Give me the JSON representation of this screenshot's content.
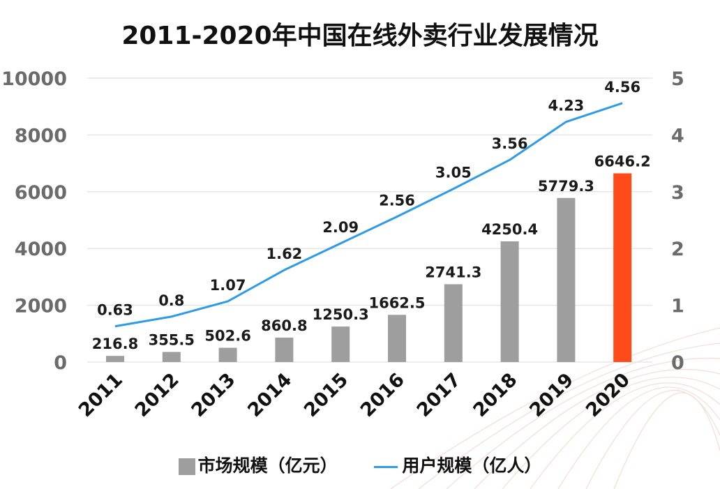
{
  "title": "2011-2020年中国在线外卖行业发展情况",
  "legend": {
    "bar_label": "市场规模（亿元）",
    "line_label": "用户规模（亿人）"
  },
  "colors": {
    "bar": "#9e9e9e",
    "highlight_bar": "#ff4a1a",
    "line": "#2f9be6",
    "grid": "#e6e6e6"
  },
  "chart_data": {
    "type": "bar",
    "title": "2011-2020年中国在线外卖行业发展情况",
    "categories": [
      "2011",
      "2012",
      "2013",
      "2014",
      "2015",
      "2016",
      "2017",
      "2018",
      "2019",
      "2020"
    ],
    "series": [
      {
        "name": "市场规模（亿元）",
        "type": "bar",
        "axis": "left",
        "values": [
          216.8,
          355.5,
          502.6,
          860.8,
          1250.3,
          1662.5,
          2741.3,
          4250.4,
          5779.3,
          6646.2
        ],
        "labels": [
          "216.8",
          "355.5",
          "502.6",
          "860.8",
          "1250.3",
          "1662.5",
          "2741.3",
          "4250.4",
          "5779.3",
          "6646.2"
        ],
        "highlight_index": 9
      },
      {
        "name": "用户规模（亿人）",
        "type": "line",
        "axis": "right",
        "values": [
          0.63,
          0.8,
          1.07,
          1.62,
          2.09,
          2.56,
          3.05,
          3.56,
          4.23,
          4.56
        ],
        "labels": [
          "0.63",
          "0.8",
          "1.07",
          "1.62",
          "2.09",
          "2.56",
          "3.05",
          "3.56",
          "4.23",
          "4.56"
        ]
      }
    ],
    "y_left": {
      "range": [
        0,
        10000
      ],
      "ticks": [
        "0",
        "2000",
        "4000",
        "6000",
        "8000",
        "10000"
      ]
    },
    "y_right": {
      "range": [
        0,
        5
      ],
      "ticks": [
        "0",
        "1",
        "2",
        "3",
        "4",
        "5"
      ]
    },
    "grid": true,
    "legend_position": "bottom"
  }
}
